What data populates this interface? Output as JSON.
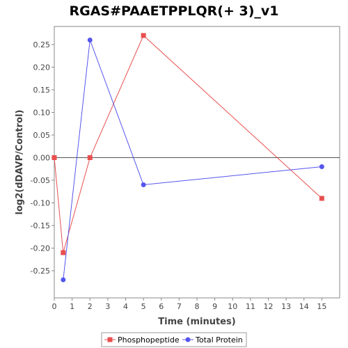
{
  "chart_data": {
    "type": "line",
    "title": "RGAS#PAAETPPLQR(+ 3)_v1",
    "xlabel": "Time (minutes)",
    "ylabel": "log2(dDAVP/Control)",
    "xlim": [
      0,
      16
    ],
    "ylim": [
      -0.31,
      0.29
    ],
    "x_ticks": [
      0,
      1,
      2,
      3,
      4,
      5,
      6,
      7,
      8,
      9,
      10,
      11,
      12,
      13,
      14,
      15
    ],
    "y_ticks": [
      -0.25,
      -0.2,
      -0.15,
      -0.1,
      -0.05,
      0.0,
      0.05,
      0.1,
      0.15,
      0.2,
      0.25
    ],
    "x_tick_labels": [
      "0",
      "1",
      "2",
      "3",
      "4",
      "5",
      "6",
      "7",
      "8",
      "9",
      "10",
      "11",
      "12",
      "13",
      "14",
      "15"
    ],
    "y_tick_labels": [
      "-0.25",
      "-0.20",
      "-0.15",
      "-0.10",
      "-0.05",
      "0.00",
      "0.05",
      "0.10",
      "0.15",
      "0.20",
      "0.25"
    ],
    "zero_line": true,
    "grid": false,
    "legend_position": "bottom",
    "series": [
      {
        "name": "Phosphopeptide",
        "color": "#e8504f",
        "marker": "square",
        "x": [
          0,
          0.5,
          2,
          5,
          15
        ],
        "y": [
          0.0,
          -0.21,
          0.0,
          0.27,
          -0.09
        ]
      },
      {
        "name": "Total Protein",
        "color": "#5555ee",
        "marker": "circle",
        "x": [
          0.5,
          2,
          5,
          15
        ],
        "y": [
          -0.27,
          0.26,
          -0.06,
          -0.02
        ]
      }
    ]
  }
}
